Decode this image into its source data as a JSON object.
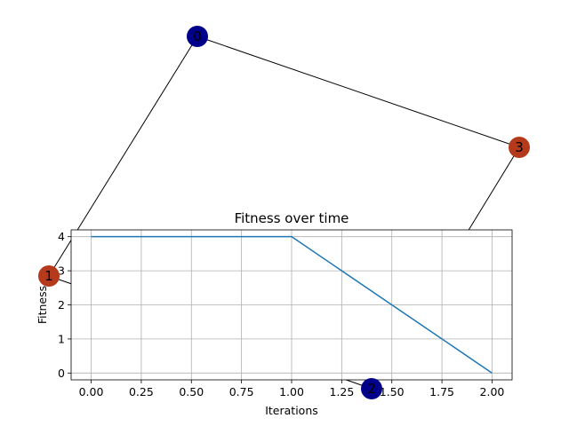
{
  "graph": {
    "nodes": [
      {
        "id": "0",
        "label": "0",
        "color": "#00008b"
      },
      {
        "id": "1",
        "label": "1",
        "color": "#b5391b"
      },
      {
        "id": "2",
        "label": "2",
        "color": "#00008b"
      },
      {
        "id": "3",
        "label": "3",
        "color": "#b5391b"
      }
    ],
    "edges": [
      [
        "0",
        "3"
      ],
      [
        "0",
        "1"
      ],
      [
        "3",
        "2"
      ],
      [
        "1",
        "2"
      ]
    ]
  },
  "chart_data": {
    "type": "line",
    "title": "Fitness over time",
    "xlabel": "Iterations",
    "ylabel": "Fitness",
    "x": [
      0,
      1,
      2
    ],
    "series": [
      {
        "values": [
          4,
          4,
          0
        ],
        "color": "#1f77b4"
      }
    ],
    "xlim": [
      -0.1,
      2.1
    ],
    "ylim": [
      -0.2,
      4.2
    ],
    "xticks": [
      0.0,
      0.25,
      0.5,
      0.75,
      1.0,
      1.25,
      1.5,
      1.75,
      2.0
    ],
    "xtick_labels": [
      "0.00",
      "0.25",
      "0.50",
      "0.75",
      "1.00",
      "1.25",
      "1.50",
      "1.75",
      "2.00"
    ],
    "yticks": [
      0,
      1,
      2,
      3,
      4
    ],
    "ytick_labels": [
      "0",
      "1",
      "2",
      "3",
      "4"
    ],
    "grid": true
  }
}
